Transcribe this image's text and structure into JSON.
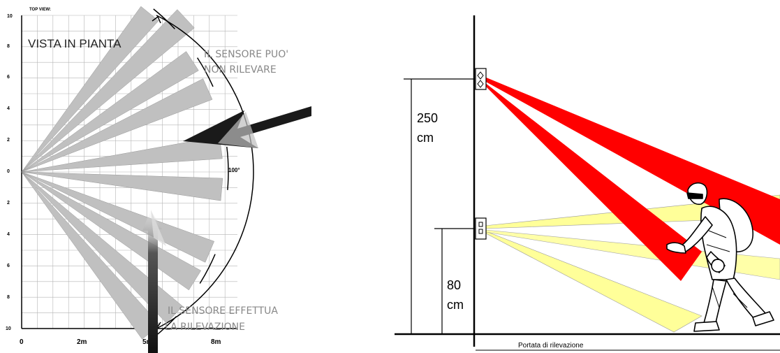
{
  "left_panel": {
    "top_view_caption": "TOP VIEW:",
    "title": "VISTA IN PIANTA",
    "no_detect_line1": "IL SENSORE PUO'",
    "no_detect_line2": "NON RILEVARE",
    "detect_line1": "IL SENSORE EFFETTUA",
    "detect_line2": "LA RILEVAZIONE",
    "angle_label": "100°",
    "y_ticks": [
      "10",
      "8",
      "6",
      "4",
      "2",
      "0",
      "2",
      "4",
      "6",
      "8",
      "10"
    ],
    "x_ticks": [
      "0",
      "2m",
      "5m",
      "8m"
    ],
    "colors": {
      "beam": "#c0c0c0",
      "grid": "#b5b5b5",
      "arrow": "#2a2a2a"
    }
  },
  "right_panel": {
    "height_high_value": "250",
    "height_high_unit": "cm",
    "height_low_value": "80",
    "height_low_unit": "cm",
    "range_caption": "Portata di rilevazione",
    "colors": {
      "upper_beam": "#ff0000",
      "lower_beam": "#ffff99",
      "line": "#000000"
    },
    "figure_icon": "walking-intruder-icon"
  }
}
